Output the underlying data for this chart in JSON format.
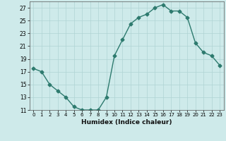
{
  "x": [
    0,
    1,
    2,
    3,
    4,
    5,
    6,
    7,
    8,
    9,
    10,
    11,
    12,
    13,
    14,
    15,
    16,
    17,
    18,
    19,
    20,
    21,
    22,
    23
  ],
  "y": [
    17.5,
    17.0,
    15.0,
    14.0,
    13.0,
    11.5,
    11.0,
    11.0,
    11.0,
    13.0,
    19.5,
    22.0,
    24.5,
    25.5,
    26.0,
    27.0,
    27.5,
    26.5,
    26.5,
    25.5,
    21.5,
    20.0,
    19.5,
    18.0
  ],
  "line_color": "#2d7a6e",
  "bg_color": "#ceeaea",
  "grid_color": "#afd4d4",
  "xlabel": "Humidex (Indice chaleur)",
  "ylim": [
    11,
    28
  ],
  "xlim": [
    -0.5,
    23.5
  ],
  "yticks": [
    11,
    13,
    15,
    17,
    19,
    21,
    23,
    25,
    27
  ],
  "xticks": [
    0,
    1,
    2,
    3,
    4,
    5,
    6,
    7,
    8,
    9,
    10,
    11,
    12,
    13,
    14,
    15,
    16,
    17,
    18,
    19,
    20,
    21,
    22,
    23
  ],
  "marker": "D",
  "markersize": 2.5,
  "linewidth": 1.0
}
